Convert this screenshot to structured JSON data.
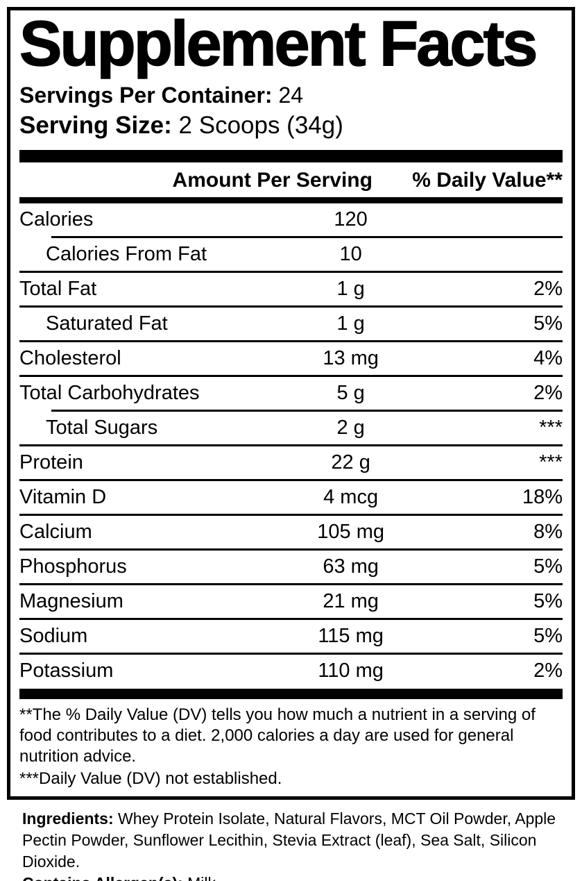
{
  "label": {
    "title": "Supplement Facts",
    "servings": {
      "label": "Servings Per Container:",
      "value": "24"
    },
    "serving_size": {
      "label": "Serving Size:",
      "value": "2 Scoops (34g)"
    },
    "header": {
      "amount": "Amount Per Serving",
      "daily_value": "% Daily Value**"
    },
    "rows": [
      {
        "name": "Calories",
        "amount": "120",
        "dv": ""
      },
      {
        "name": "Calories From Fat",
        "amount": "10",
        "dv": ""
      },
      {
        "name": "Total Fat",
        "amount": "1 g",
        "dv": "2%"
      },
      {
        "name": "Saturated Fat",
        "amount": "1 g",
        "dv": "5%"
      },
      {
        "name": "Cholesterol",
        "amount": "13 mg",
        "dv": "4%"
      },
      {
        "name": "Total Carbohydrates",
        "amount": "5 g",
        "dv": "2%"
      },
      {
        "name": "Total Sugars",
        "amount": "2 g",
        "dv": "***"
      },
      {
        "name": "Protein",
        "amount": "22 g",
        "dv": "***"
      },
      {
        "name": "Vitamin D",
        "amount": "4 mcg",
        "dv": "18%"
      },
      {
        "name": "Calcium",
        "amount": "105 mg",
        "dv": "8%"
      },
      {
        "name": "Phosphorus",
        "amount": "63 mg",
        "dv": "5%"
      },
      {
        "name": "Magnesium",
        "amount": "21 mg",
        "dv": "5%"
      },
      {
        "name": "Sodium",
        "amount": "115 mg",
        "dv": "5%"
      },
      {
        "name": "Potassium",
        "amount": "110 mg",
        "dv": "2%"
      }
    ],
    "footnotes": [
      "**The % Daily Value (DV) tells you how much a nutrient in a serving of food contributes to a diet. 2,000 calories a day are used for general nutrition advice.",
      "***Daily Value (DV) not established."
    ]
  },
  "ingredients": {
    "label": "Ingredients:",
    "text": "Whey Protein Isolate, Natural Flavors, MCT Oil Powder, Apple Pectin Powder, Sunflower Lecithin, Stevia Extract (leaf), Sea Salt, Silicon Dioxide.",
    "allergen_label": "Contains Allergen(s):",
    "allergen_value": "Milk"
  },
  "colors": {
    "text": "#000000",
    "background": "#ffffff"
  }
}
